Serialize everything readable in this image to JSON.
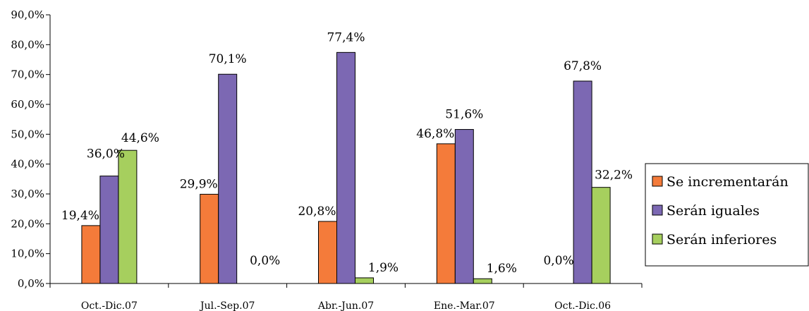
{
  "chart_data": {
    "type": "bar",
    "categories": [
      "Oct.-Dic.07",
      "Jul.-Sep.07",
      "Abr.-Jun.07",
      "Ene.-Mar.07",
      "Oct.-Dic.06"
    ],
    "series": [
      {
        "name": "Se incrementarán",
        "values": [
          19.4,
          29.9,
          20.8,
          46.8,
          0.0
        ],
        "labels": [
          "19,4%",
          "29,9%",
          "20,8%",
          "46,8%",
          "0,0%"
        ],
        "color": "#F47B3A"
      },
      {
        "name": "Serán iguales",
        "values": [
          36.0,
          70.1,
          77.4,
          51.6,
          67.8
        ],
        "labels": [
          "36,0%",
          "70,1%",
          "77,4%",
          "51,6%",
          "67,8%"
        ],
        "color": "#7C68B3"
      },
      {
        "name": "Serán inferiores",
        "values": [
          44.6,
          0.0,
          1.9,
          1.6,
          32.2
        ],
        "labels": [
          "44,6%",
          "0,0%",
          "1,9%",
          "1,6%",
          "32,2%"
        ],
        "color": "#A6CF5E"
      }
    ],
    "yticks": [
      "0,0%",
      "10,0%",
      "20,0%",
      "30,0%",
      "40,0%",
      "50,0%",
      "60,0%",
      "70,0%",
      "80,0%",
      "90,0%"
    ],
    "ylim": [
      0,
      90
    ],
    "grid": false,
    "legend_position": "right"
  }
}
